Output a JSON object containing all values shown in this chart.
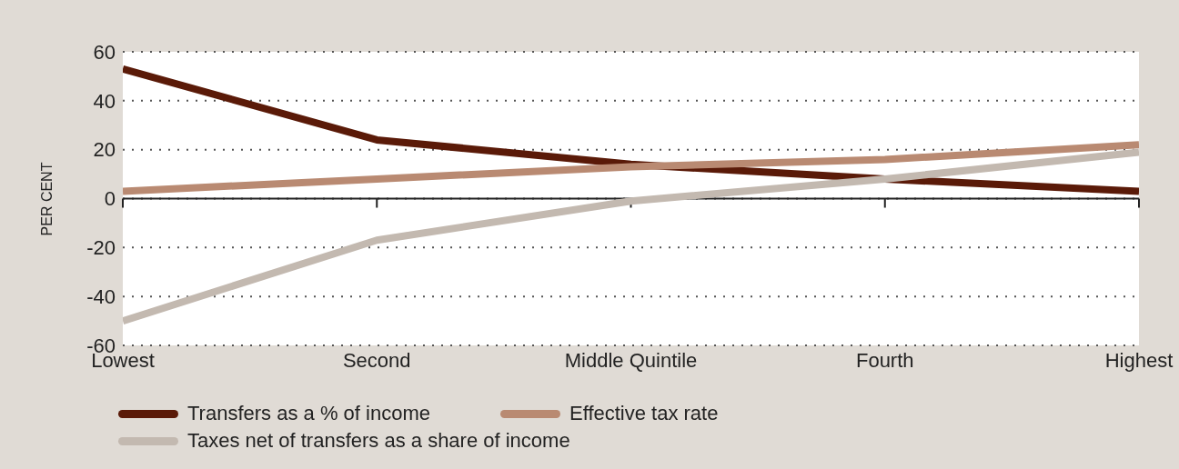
{
  "chart_data": {
    "type": "line",
    "ylabel": "PER CENT",
    "categories": [
      "Lowest",
      "Second",
      "Middle Quintile",
      "Fourth",
      "Highest"
    ],
    "series": [
      {
        "name": "Transfers as a % of income",
        "color": "#5a1a08",
        "values": [
          53,
          24,
          14,
          8,
          3
        ]
      },
      {
        "name": "Effective tax rate",
        "color": "#b98a72",
        "values": [
          3,
          8,
          13,
          16,
          22
        ]
      },
      {
        "name": "Taxes net of transfers as a share of income",
        "color": "#c3b9b0",
        "values": [
          -50,
          -17,
          -1,
          8,
          19
        ]
      }
    ],
    "ylim": [
      -60,
      60
    ],
    "yticks": [
      -60,
      -40,
      -20,
      0,
      20,
      40,
      60
    ],
    "grid": "y",
    "legend": "bottom",
    "marker": "none",
    "line_style": "solid"
  }
}
